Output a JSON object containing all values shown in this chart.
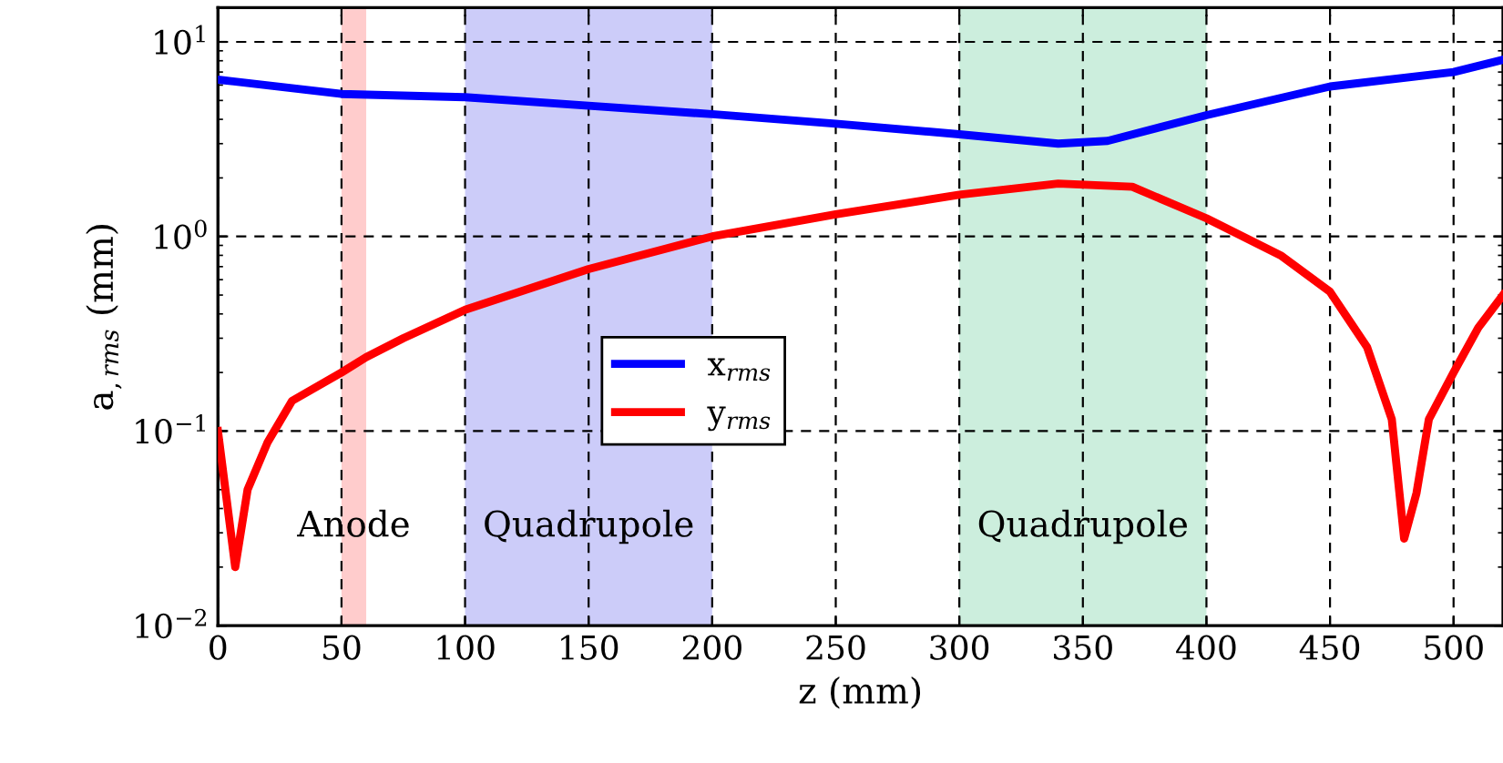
{
  "chart_data": {
    "type": "line",
    "xlabel": "z (mm)",
    "ylabel": "a$_{,rms}$ (mm)",
    "log": "y",
    "xlim": [
      0,
      520
    ],
    "xticks": [
      0,
      50,
      100,
      150,
      200,
      250,
      300,
      350,
      400,
      450,
      500
    ],
    "ylim": [
      0.01,
      15
    ],
    "yticks": [
      {
        "value": 0.01,
        "label": "10$^{−2}$"
      },
      {
        "value": 0.1,
        "label": "10$^{−1}$"
      },
      {
        "value": 1,
        "label": "10$^{0}$"
      },
      {
        "value": 10,
        "label": "10$^{1}$"
      }
    ],
    "grid": true,
    "legend": "center",
    "line_style": "solid",
    "bands": [
      {
        "axis": "x",
        "from": 50,
        "to": 60,
        "label": "Anode",
        "color": "#ffcccc"
      },
      {
        "axis": "x",
        "from": 100,
        "to": 200,
        "label": "Quadrupole",
        "color": "#ccccf9"
      },
      {
        "axis": "x",
        "from": 300,
        "to": 400,
        "label": "Quadrupole",
        "color": "#cceedd"
      }
    ],
    "series": [
      {
        "name": "x$_{rms}$",
        "color": "#0000ff",
        "x": [
          0,
          50,
          100,
          150,
          200,
          250,
          300,
          340,
          360,
          400,
          450,
          500,
          520
        ],
        "values": [
          6.4,
          5.4,
          5.2,
          4.7,
          4.25,
          3.8,
          3.35,
          3.0,
          3.1,
          4.2,
          5.9,
          7.0,
          8.1
        ]
      },
      {
        "name": "y$_{rms}$",
        "color": "#ff0000",
        "x": [
          0,
          7,
          12,
          20,
          30,
          50,
          60,
          75,
          100,
          150,
          200,
          250,
          300,
          340,
          370,
          400,
          430,
          450,
          465,
          475,
          480,
          485,
          490,
          500,
          510,
          520
        ],
        "values": [
          0.1,
          0.02,
          0.05,
          0.087,
          0.143,
          0.2,
          0.24,
          0.3,
          0.42,
          0.68,
          1.0,
          1.3,
          1.64,
          1.87,
          1.8,
          1.24,
          0.8,
          0.52,
          0.27,
          0.115,
          0.028,
          0.048,
          0.115,
          0.2,
          0.34,
          0.5
        ]
      }
    ]
  }
}
